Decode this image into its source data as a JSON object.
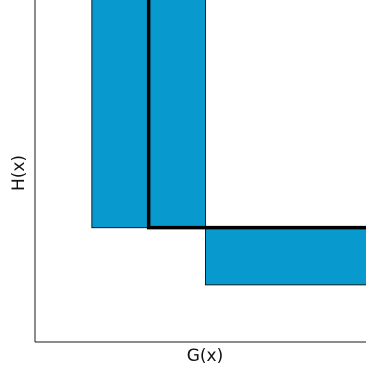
{
  "chart_data": {
    "type": "area",
    "title": "",
    "xlabel": "G(x)",
    "ylabel": "H(x)",
    "xlim": [
      0,
      6
    ],
    "ylim": [
      0,
      6
    ],
    "grid": false,
    "legend": "none",
    "rectangles": [
      {
        "x0": 1.0,
        "x1": 3.0,
        "y0": 2.0,
        "y1": 6.0
      },
      {
        "x0": 3.0,
        "x1": 6.0,
        "y0": 1.0,
        "y1": 2.0
      }
    ],
    "step_line": {
      "x": [
        2.0,
        2.0,
        6.0
      ],
      "y": [
        6.0,
        2.0,
        2.0
      ]
    },
    "colors": {
      "fill": "#0899cf",
      "step": "#000000"
    }
  }
}
